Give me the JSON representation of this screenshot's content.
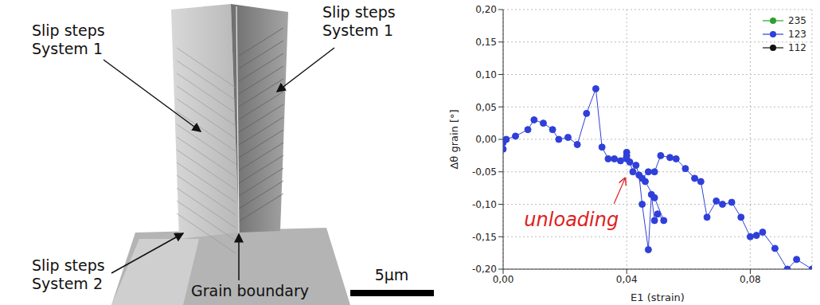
{
  "image": {
    "labels": [
      {
        "lines": [
          "Slip steps",
          "System 1"
        ]
      },
      {
        "lines": [
          "Slip steps",
          "System 1"
        ]
      },
      {
        "lines": [
          "Slip steps",
          "System 2"
        ]
      },
      {
        "lines": [
          "Grain boundary"
        ]
      }
    ],
    "scale_bar": "5µm"
  },
  "chart_data": {
    "type": "line",
    "x_label": "E1 (strain)",
    "y_label": "Δθ grain [°]",
    "xlim": [
      0,
      0.1
    ],
    "xticks": [
      {
        "value": 0,
        "label": "0,00"
      },
      {
        "value": 0.04,
        "label": "0,04"
      },
      {
        "value": 0.08,
        "label": "0,08"
      }
    ],
    "ylim": [
      -0.2,
      0.2
    ],
    "yticks": [
      {
        "value": -0.2,
        "label": "-0,20"
      },
      {
        "value": -0.15,
        "label": "-0,15"
      },
      {
        "value": -0.1,
        "label": "-0,10"
      },
      {
        "value": -0.05,
        "label": "-0,05"
      },
      {
        "value": 0,
        "label": "0,00"
      },
      {
        "value": 0.05,
        "label": "0,05"
      },
      {
        "value": 0.1,
        "label": "0,10"
      },
      {
        "value": 0.15,
        "label": "0,15"
      },
      {
        "value": 0.2,
        "label": "0,20"
      }
    ],
    "grid": true,
    "legend": "upper right",
    "marker": "circle",
    "annotations": [
      {
        "text": "unloading",
        "x": 0.04,
        "y": -0.055
      }
    ],
    "series": [
      {
        "name": "235",
        "color": "#2ca02c",
        "x": [],
        "values": []
      },
      {
        "name": "123",
        "color": "#2f3fd9",
        "x": [
          0.0,
          0.0,
          0.001,
          0.004,
          0.008,
          0.01,
          0.013,
          0.016,
          0.018,
          0.021,
          0.024,
          0.027,
          0.03,
          0.032,
          0.034,
          0.036,
          0.038,
          0.04,
          0.04,
          0.04,
          0.041,
          0.042,
          0.043,
          0.044,
          0.045,
          0.047,
          0.048,
          0.049,
          0.05,
          0.052,
          0.049,
          0.046,
          0.045,
          0.047,
          0.049,
          0.051,
          0.054,
          0.056,
          0.059,
          0.062,
          0.064,
          0.066,
          0.069,
          0.071,
          0.074,
          0.077,
          0.08,
          0.082,
          0.084,
          0.088,
          0.092,
          0.095,
          0.1
        ],
        "values": [
          -0.015,
          -0.005,
          0.0,
          0.005,
          0.015,
          0.03,
          0.025,
          0.015,
          0.0,
          0.003,
          -0.008,
          0.04,
          0.078,
          -0.012,
          -0.03,
          -0.03,
          -0.033,
          -0.02,
          -0.025,
          -0.03,
          -0.035,
          -0.05,
          -0.04,
          -0.055,
          -0.1,
          -0.17,
          -0.085,
          -0.125,
          -0.115,
          -0.125,
          -0.09,
          -0.065,
          -0.06,
          -0.05,
          -0.05,
          -0.025,
          -0.028,
          -0.03,
          -0.045,
          -0.06,
          -0.065,
          -0.12,
          -0.095,
          -0.1,
          -0.097,
          -0.12,
          -0.15,
          -0.148,
          -0.143,
          -0.168,
          -0.2,
          -0.185,
          -0.2
        ]
      },
      {
        "name": "112",
        "color": "#111111",
        "x": [],
        "values": []
      }
    ]
  }
}
